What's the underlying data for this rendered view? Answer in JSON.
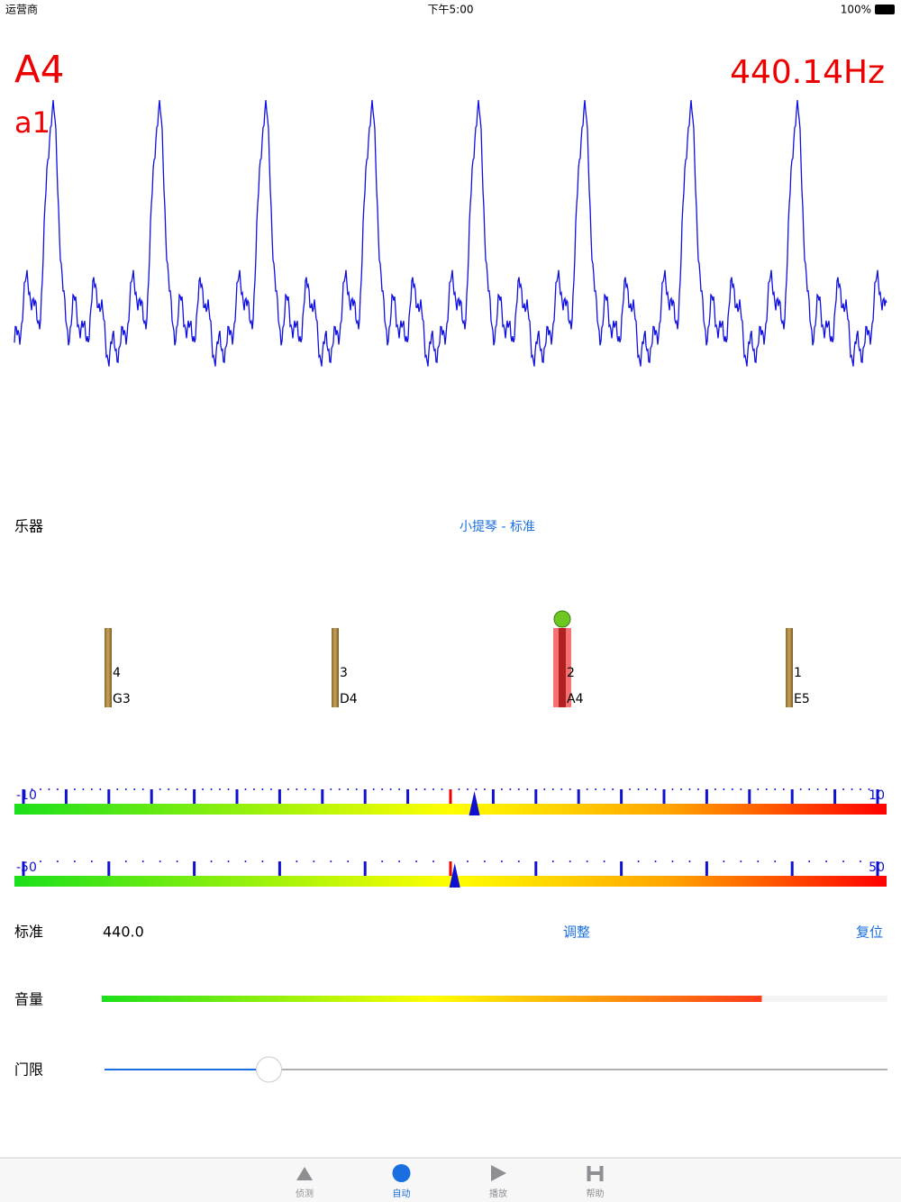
{
  "status_bar": {
    "carrier": "运营商",
    "time": "下午5:00",
    "battery": "100%"
  },
  "note": {
    "name": "A4",
    "alt_name": "a1",
    "frequency": "440.14Hz"
  },
  "instrument": {
    "label": "乐器",
    "value": "小提琴 - 标准"
  },
  "strings": [
    {
      "number": "4",
      "note": "G3",
      "active": false
    },
    {
      "number": "3",
      "note": "D4",
      "active": false
    },
    {
      "number": "2",
      "note": "A4",
      "active": true
    },
    {
      "number": "1",
      "note": "E5",
      "active": false
    }
  ],
  "meters": [
    {
      "min": -10,
      "max": 10,
      "major_step": 1,
      "needle": 0.56
    },
    {
      "min": -50,
      "max": 50,
      "major_step": 10,
      "needle": 0.5
    }
  ],
  "reference": {
    "label": "标准",
    "value": "440.0",
    "adjust": "调整",
    "reset": "复位"
  },
  "volume": {
    "label": "音量",
    "level": 0.84
  },
  "threshold": {
    "label": "门限",
    "level": 0.21
  },
  "tabs": [
    {
      "label": "侦测",
      "active": false
    },
    {
      "label": "自动",
      "active": true
    },
    {
      "label": "播放",
      "active": false
    },
    {
      "label": "帮助",
      "active": false
    }
  ]
}
